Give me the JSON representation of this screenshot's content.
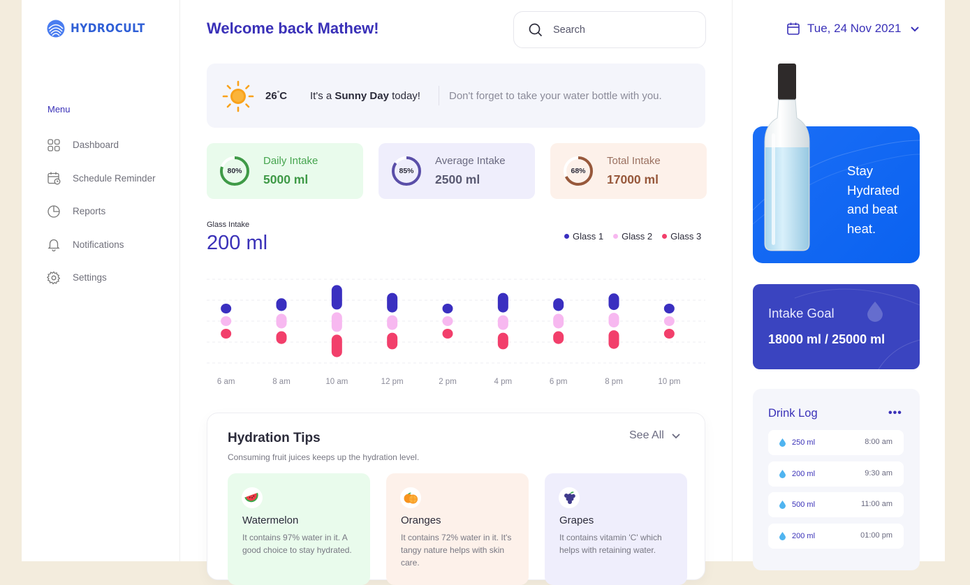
{
  "app": {
    "name": "HYDROCULT"
  },
  "sidebar": {
    "menu_label": "Menu",
    "items": [
      {
        "label": "Dashboard",
        "icon": "grid-icon"
      },
      {
        "label": "Schedule Reminder",
        "icon": "calendar-clock-icon"
      },
      {
        "label": "Reports",
        "icon": "pie-chart-icon"
      },
      {
        "label": "Notifications",
        "icon": "bell-icon"
      },
      {
        "label": "Settings",
        "icon": "gear-icon"
      }
    ]
  },
  "header": {
    "welcome_prefix": "Welcome back ",
    "user_name": "Mathew!",
    "search_placeholder": "Search"
  },
  "weather": {
    "temperature": "26",
    "unit": "C",
    "prefix": "It's a ",
    "condition": "Sunny Day",
    "suffix": " today!",
    "reminder": "Don't forget to take your water bottle with you."
  },
  "stats": [
    {
      "title": "Daily Intake",
      "value": "5000 ml",
      "percent_label": "80%",
      "percent": 80,
      "color": "#3f9a47"
    },
    {
      "title": "Average Intake",
      "value": "2500 ml",
      "percent_label": "85%",
      "percent": 85,
      "color": "#5a4ea8"
    },
    {
      "title": "Total Intake",
      "value": "17000 ml",
      "percent_label": "68%",
      "percent": 68,
      "color": "#97583b"
    }
  ],
  "glass_intake": {
    "label": "Glass Intake",
    "value": "200 ml",
    "legend": [
      {
        "name": "Glass 1",
        "color": "#3a2fc0"
      },
      {
        "name": "Glass 2",
        "color": "#f7b8f0"
      },
      {
        "name": "Glass 3",
        "color": "#f23f6b"
      }
    ]
  },
  "chart_data": {
    "type": "bar",
    "categories": [
      "6 am",
      "8 am",
      "10 am",
      "12 pm",
      "2 pm",
      "4 pm",
      "6 pm",
      "8 pm",
      "10 pm"
    ],
    "series": [
      {
        "name": "Glass 1",
        "values": [
          1,
          1.3,
          2.5,
          2,
          1,
          2,
          1.3,
          1.7,
          1
        ]
      },
      {
        "name": "Glass 2",
        "values": [
          1,
          1.5,
          2,
          1.5,
          1,
          1.5,
          1.5,
          1.5,
          1
        ]
      },
      {
        "name": "Glass 3",
        "values": [
          1,
          1.3,
          2.3,
          1.7,
          1,
          1.7,
          1.3,
          1.9,
          1
        ]
      }
    ]
  },
  "tips": {
    "title": "Hydration Tips",
    "subtitle": "Consuming fruit juices keeps up the hydration level.",
    "see_all": "See All",
    "cards": [
      {
        "name": "Watermelon",
        "icon": "watermelon-icon",
        "description": "It contains 97% water in it. A good choice to stay hydrated."
      },
      {
        "name": "Oranges",
        "icon": "orange-icon",
        "description": "It contains 72% water in it. It's tangy nature helps with skin care."
      },
      {
        "name": "Grapes",
        "icon": "grapes-icon",
        "description": "It contains vitamin 'C' which helps with retaining water."
      }
    ]
  },
  "right": {
    "date": "Tue, 24 Nov 2021",
    "promo_text": "Stay Hydrated and beat heat.",
    "goal_label": "Intake Goal",
    "goal_value": "18000 ml / 25000 ml",
    "log_title": "Drink Log",
    "log_more": "•••",
    "log": [
      {
        "amount": "250 ml",
        "time": "8:00 am"
      },
      {
        "amount": "200 ml",
        "time": "9:30 am"
      },
      {
        "amount": "500 ml",
        "time": "11:00 am"
      },
      {
        "amount": "200 ml",
        "time": "01:00 pm"
      }
    ]
  }
}
